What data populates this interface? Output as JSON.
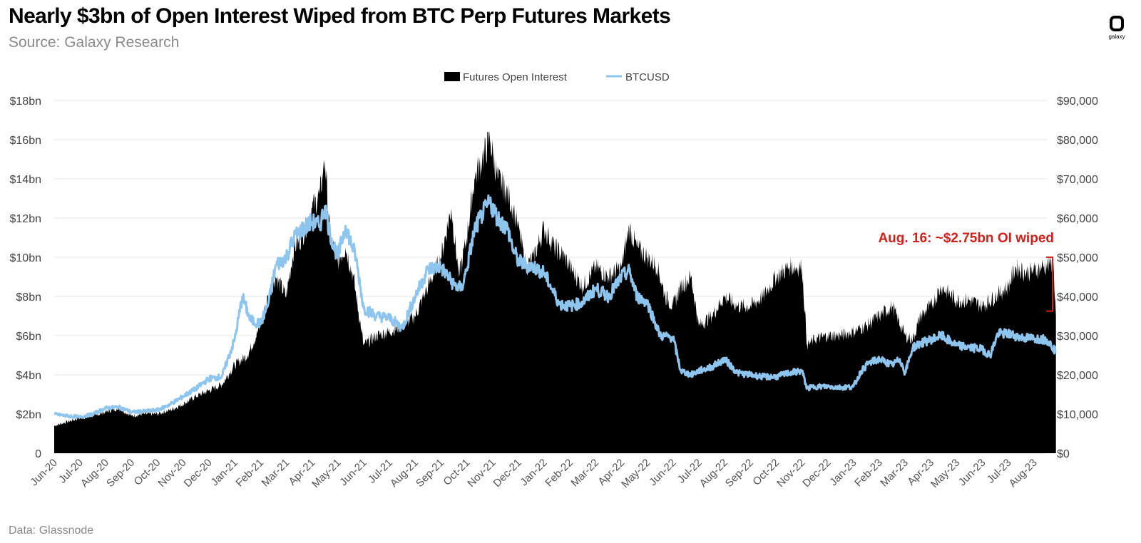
{
  "header": {
    "title": "Nearly $3bn of Open Interest Wiped from BTC Perp Futures Markets",
    "source": "Source: Galaxy Research"
  },
  "logo": {
    "text": "galaxy"
  },
  "footer": {
    "data_note": "Data: Glassnode"
  },
  "colors": {
    "open_interest": "#000000",
    "btcusd": "#8ec5ee",
    "annotation": "#d0211c",
    "grid": "#e6e6e6"
  },
  "chart_data": {
    "type": "area",
    "title": "Nearly $3bn of Open Interest Wiped from BTC Perp Futures Markets",
    "legend_position": "top-center",
    "grid": true,
    "categories": [
      "Jun-20",
      "Jul-20",
      "Aug-20",
      "Sep-20",
      "Oct-20",
      "Nov-20",
      "Dec-20",
      "Jan-21",
      "Feb-21",
      "Mar-21",
      "Apr-21",
      "May-21",
      "Jun-21",
      "Jul-21",
      "Aug-21",
      "Sep-21",
      "Oct-21",
      "Nov-21",
      "Dec-21",
      "Jan-22",
      "Feb-22",
      "Mar-22",
      "Apr-22",
      "May-22",
      "Jun-22",
      "Jul-22",
      "Aug-22",
      "Sep-22",
      "Oct-22",
      "Nov-22",
      "Dec-22",
      "Jan-23",
      "Feb-23",
      "Mar-23",
      "Apr-23",
      "May-23",
      "Jun-23",
      "Jul-23",
      "Aug-23"
    ],
    "left_axis": {
      "range": [
        0,
        18
      ],
      "ticks": [
        "0",
        "$2bn",
        "$4bn",
        "$6bn",
        "$8bn",
        "$10bn",
        "$12bn",
        "$14bn",
        "$16bn",
        "$18bn"
      ]
    },
    "right_axis": {
      "range": [
        0,
        90000
      ],
      "ticks": [
        "$0",
        "$10,000",
        "$20,000",
        "$30,000",
        "$40,000",
        "$50,000",
        "$60,000",
        "$70,000",
        "$80,000",
        "$90,000"
      ]
    },
    "series": [
      {
        "name": "Futures Open Interest",
        "type": "area",
        "axis": "left",
        "unit": "$bn",
        "points": [
          [
            0,
            1.4
          ],
          [
            0.5,
            1.6
          ],
          [
            1,
            1.8
          ],
          [
            1.5,
            1.9
          ],
          [
            2,
            2.1
          ],
          [
            2.5,
            2.3
          ],
          [
            3,
            1.9
          ],
          [
            3.5,
            2.0
          ],
          [
            4,
            2.0
          ],
          [
            4.5,
            2.2
          ],
          [
            5,
            2.5
          ],
          [
            5.5,
            2.9
          ],
          [
            6,
            3.2
          ],
          [
            6.5,
            3.5
          ],
          [
            7,
            4.5
          ],
          [
            7.5,
            5.0
          ],
          [
            8,
            6.5
          ],
          [
            8.3,
            8.0
          ],
          [
            8.6,
            9.0
          ],
          [
            9,
            8.0
          ],
          [
            9.3,
            10.5
          ],
          [
            9.6,
            11.0
          ],
          [
            10,
            12.5
          ],
          [
            10.3,
            13.2
          ],
          [
            10.5,
            15.0
          ],
          [
            10.7,
            11.0
          ],
          [
            11,
            9.8
          ],
          [
            11.3,
            10.5
          ],
          [
            11.6,
            9.0
          ],
          [
            12,
            5.5
          ],
          [
            12.5,
            6.0
          ],
          [
            13,
            6.2
          ],
          [
            13.5,
            6.5
          ],
          [
            14,
            7.0
          ],
          [
            14.5,
            8.5
          ],
          [
            15,
            10.0
          ],
          [
            15.4,
            12.5
          ],
          [
            15.7,
            9.0
          ],
          [
            16,
            11.0
          ],
          [
            16.3,
            14.0
          ],
          [
            16.6,
            15.0
          ],
          [
            16.9,
            16.0
          ],
          [
            17.2,
            14.0
          ],
          [
            17.5,
            13.5
          ],
          [
            17.8,
            12.5
          ],
          [
            18,
            11.5
          ],
          [
            18.3,
            9.5
          ],
          [
            18.6,
            10.0
          ],
          [
            19,
            11.5
          ],
          [
            19.4,
            10.5
          ],
          [
            19.8,
            10.0
          ],
          [
            20,
            9.5
          ],
          [
            20.5,
            8.5
          ],
          [
            21,
            9.5
          ],
          [
            21.5,
            9.0
          ],
          [
            22,
            9.5
          ],
          [
            22.3,
            11.5
          ],
          [
            22.6,
            10.5
          ],
          [
            23,
            10.0
          ],
          [
            23.4,
            9.5
          ],
          [
            23.7,
            8.0
          ],
          [
            24,
            7.5
          ],
          [
            24.3,
            8.5
          ],
          [
            24.7,
            9.0
          ],
          [
            25,
            6.5
          ],
          [
            25.5,
            7.0
          ],
          [
            26,
            8.0
          ],
          [
            26.5,
            7.5
          ],
          [
            27,
            7.5
          ],
          [
            27.5,
            8.0
          ],
          [
            28,
            9.0
          ],
          [
            28.5,
            9.5
          ],
          [
            29,
            9.5
          ],
          [
            29.2,
            5.5
          ],
          [
            29.5,
            5.8
          ],
          [
            30,
            6.0
          ],
          [
            30.5,
            6.0
          ],
          [
            31,
            6.2
          ],
          [
            31.5,
            6.5
          ],
          [
            32,
            7.0
          ],
          [
            32.5,
            7.5
          ],
          [
            33,
            6.0
          ],
          [
            33.3,
            5.8
          ],
          [
            33.6,
            7.0
          ],
          [
            34,
            7.5
          ],
          [
            34.4,
            8.5
          ],
          [
            35,
            7.8
          ],
          [
            35.5,
            7.8
          ],
          [
            36,
            7.5
          ],
          [
            36.5,
            8.0
          ],
          [
            37,
            8.5
          ],
          [
            37.3,
            9.5
          ],
          [
            37.7,
            9.2
          ],
          [
            38,
            9.3
          ],
          [
            38.3,
            9.5
          ],
          [
            38.6,
            9.6
          ],
          [
            38.75,
            9.8
          ],
          [
            38.85,
            7.0
          ]
        ]
      },
      {
        "name": "BTCUSD",
        "type": "line",
        "axis": "right",
        "unit": "$",
        "points": [
          [
            0,
            10000
          ],
          [
            0.5,
            9500
          ],
          [
            1,
            9200
          ],
          [
            1.5,
            10000
          ],
          [
            2,
            11500
          ],
          [
            2.5,
            11800
          ],
          [
            3,
            10500
          ],
          [
            3.5,
            10700
          ],
          [
            4,
            11000
          ],
          [
            4.5,
            12500
          ],
          [
            5,
            14500
          ],
          [
            5.5,
            16500
          ],
          [
            6,
            19000
          ],
          [
            6.5,
            19500
          ],
          [
            7,
            29000
          ],
          [
            7.3,
            40000
          ],
          [
            7.6,
            34000
          ],
          [
            8,
            33000
          ],
          [
            8.3,
            38000
          ],
          [
            8.6,
            48000
          ],
          [
            9,
            50000
          ],
          [
            9.3,
            55000
          ],
          [
            9.6,
            57000
          ],
          [
            10,
            59000
          ],
          [
            10.3,
            58000
          ],
          [
            10.5,
            63000
          ],
          [
            10.7,
            56000
          ],
          [
            11,
            50000
          ],
          [
            11.3,
            58000
          ],
          [
            11.7,
            50000
          ],
          [
            12,
            37000
          ],
          [
            12.5,
            35000
          ],
          [
            13,
            34500
          ],
          [
            13.5,
            32000
          ],
          [
            14,
            40000
          ],
          [
            14.5,
            47000
          ],
          [
            15,
            47500
          ],
          [
            15.5,
            43000
          ],
          [
            15.8,
            42000
          ],
          [
            16,
            47000
          ],
          [
            16.3,
            57000
          ],
          [
            16.6,
            61000
          ],
          [
            16.9,
            64000
          ],
          [
            17.2,
            60000
          ],
          [
            17.6,
            57000
          ],
          [
            17.8,
            52000
          ],
          [
            18,
            49000
          ],
          [
            18.3,
            48000
          ],
          [
            18.6,
            47500
          ],
          [
            19,
            46000
          ],
          [
            19.3,
            42000
          ],
          [
            19.6,
            38000
          ],
          [
            20,
            37500
          ],
          [
            20.5,
            38500
          ],
          [
            21,
            42000
          ],
          [
            21.5,
            40000
          ],
          [
            22,
            45000
          ],
          [
            22.3,
            46500
          ],
          [
            22.6,
            40000
          ],
          [
            23,
            38500
          ],
          [
            23.5,
            30000
          ],
          [
            24,
            29500
          ],
          [
            24.3,
            21000
          ],
          [
            24.7,
            20000
          ],
          [
            25,
            21000
          ],
          [
            25.5,
            22000
          ],
          [
            26,
            24000
          ],
          [
            26.5,
            20500
          ],
          [
            27,
            20000
          ],
          [
            27.5,
            19500
          ],
          [
            28,
            19500
          ],
          [
            28.5,
            20500
          ],
          [
            29,
            21000
          ],
          [
            29.2,
            16500
          ],
          [
            29.5,
            17000
          ],
          [
            30,
            17000
          ],
          [
            30.5,
            16800
          ],
          [
            31,
            17000
          ],
          [
            31.3,
            21000
          ],
          [
            31.6,
            23000
          ],
          [
            32,
            24000
          ],
          [
            32.5,
            22500
          ],
          [
            32.8,
            24000
          ],
          [
            33,
            20500
          ],
          [
            33.3,
            27000
          ],
          [
            33.6,
            28000
          ],
          [
            34,
            29000
          ],
          [
            34.4,
            30000
          ],
          [
            35,
            27500
          ],
          [
            35.5,
            27000
          ],
          [
            36,
            26500
          ],
          [
            36.3,
            25000
          ],
          [
            36.6,
            30500
          ],
          [
            37,
            30500
          ],
          [
            37.5,
            29500
          ],
          [
            38,
            29300
          ],
          [
            38.5,
            29000
          ],
          [
            38.85,
            26000
          ]
        ]
      }
    ],
    "annotations": [
      {
        "text": "Aug. 16: ~$2.75bn OI wiped",
        "from_bn": 10.0,
        "to_bn": 7.25
      }
    ]
  }
}
